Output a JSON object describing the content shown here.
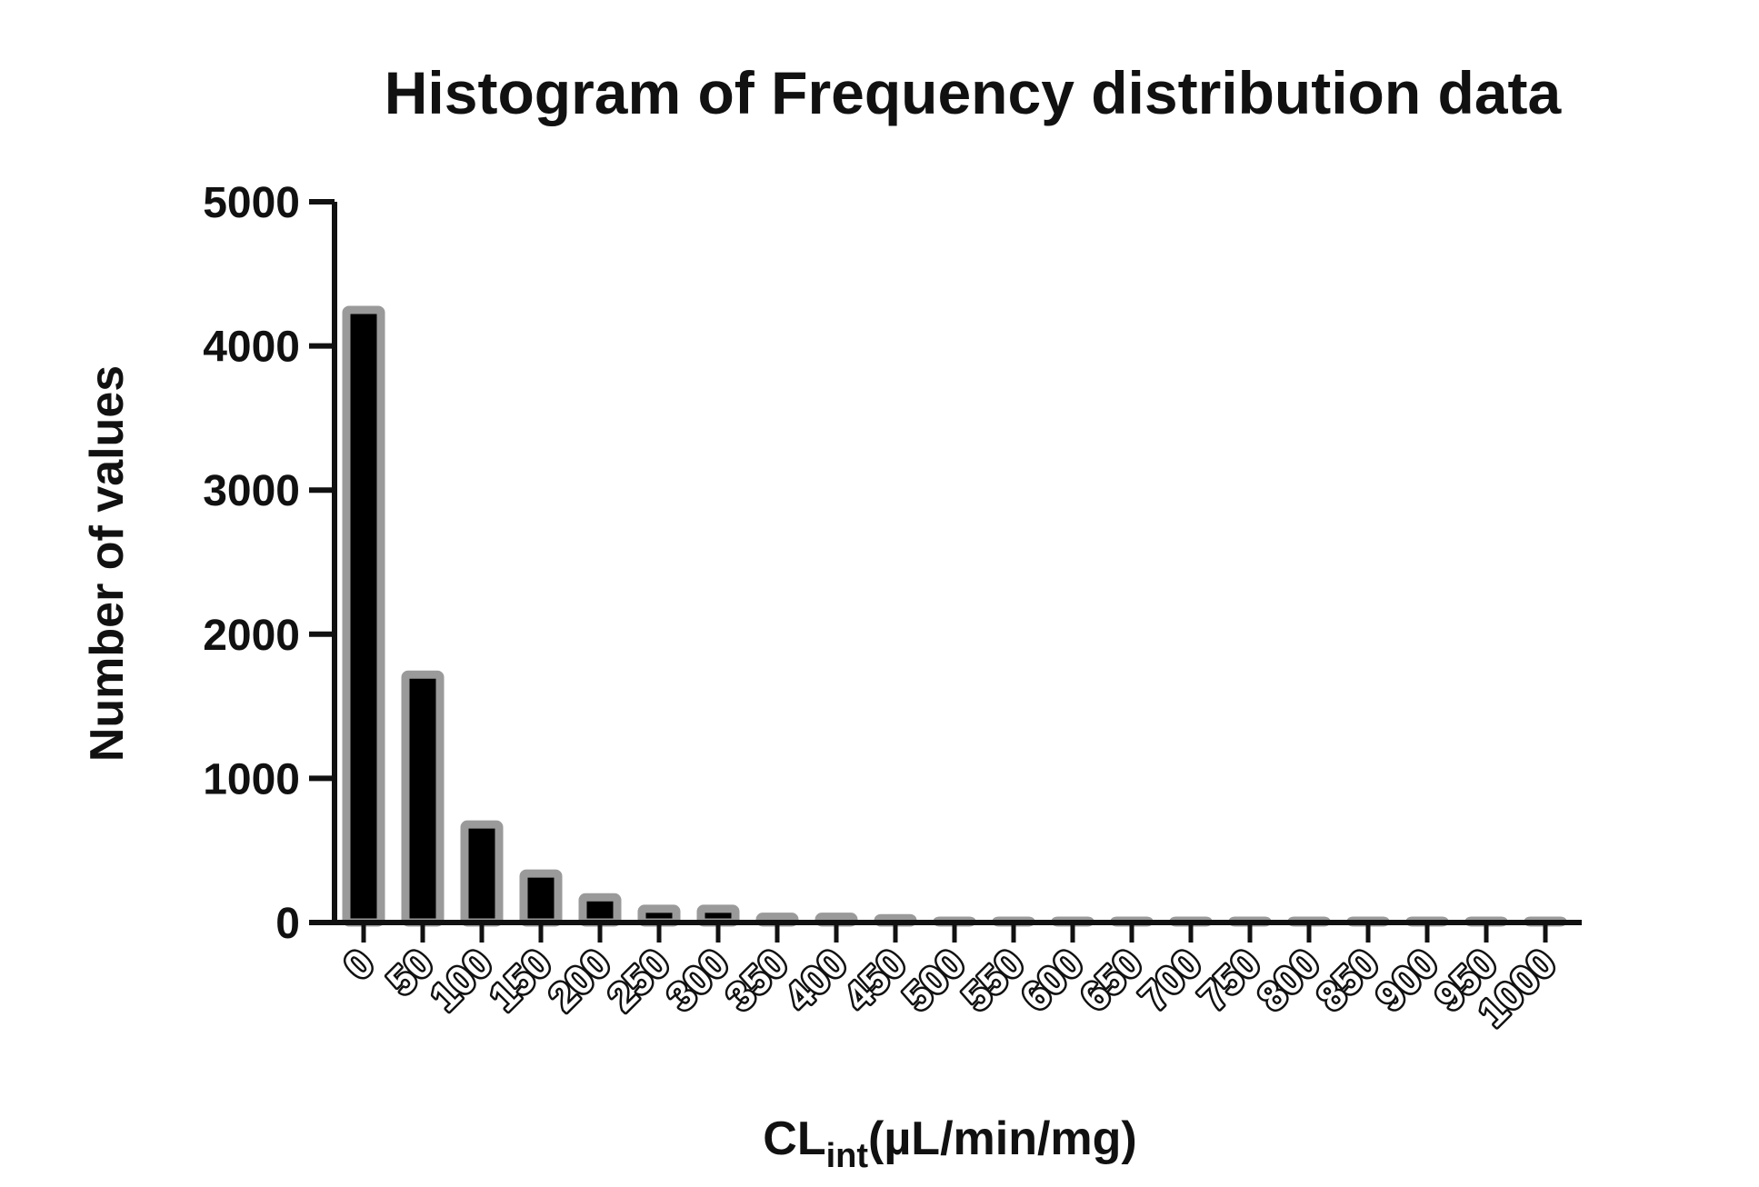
{
  "chart_data": {
    "type": "bar",
    "title": "Histogram of Frequency distribution data",
    "xlabel": {
      "main": "CL",
      "subscript": "int",
      "units": "(µL/min/mg)"
    },
    "ylabel": "Number of values",
    "ylim": [
      0,
      5000
    ],
    "yticks": [
      "0",
      "1000",
      "2000",
      "3000",
      "4000",
      "5000"
    ],
    "categories": [
      "0",
      "50",
      "100",
      "150",
      "200",
      "250",
      "300",
      "350",
      "400",
      "450",
      "500",
      "550",
      "600",
      "650",
      "700",
      "750",
      "800",
      "850",
      "900",
      "950",
      "1000"
    ],
    "values": [
      4250,
      1720,
      680,
      340,
      175,
      95,
      95,
      40,
      40,
      30,
      12,
      8,
      8,
      3,
      3,
      2,
      2,
      2,
      1,
      1,
      1
    ],
    "grid": false,
    "legend": "none",
    "colors": {
      "bar_fill": "#000000",
      "bar_outline": "#9a9a9a",
      "axis": "#111111",
      "text": "#111111"
    }
  }
}
